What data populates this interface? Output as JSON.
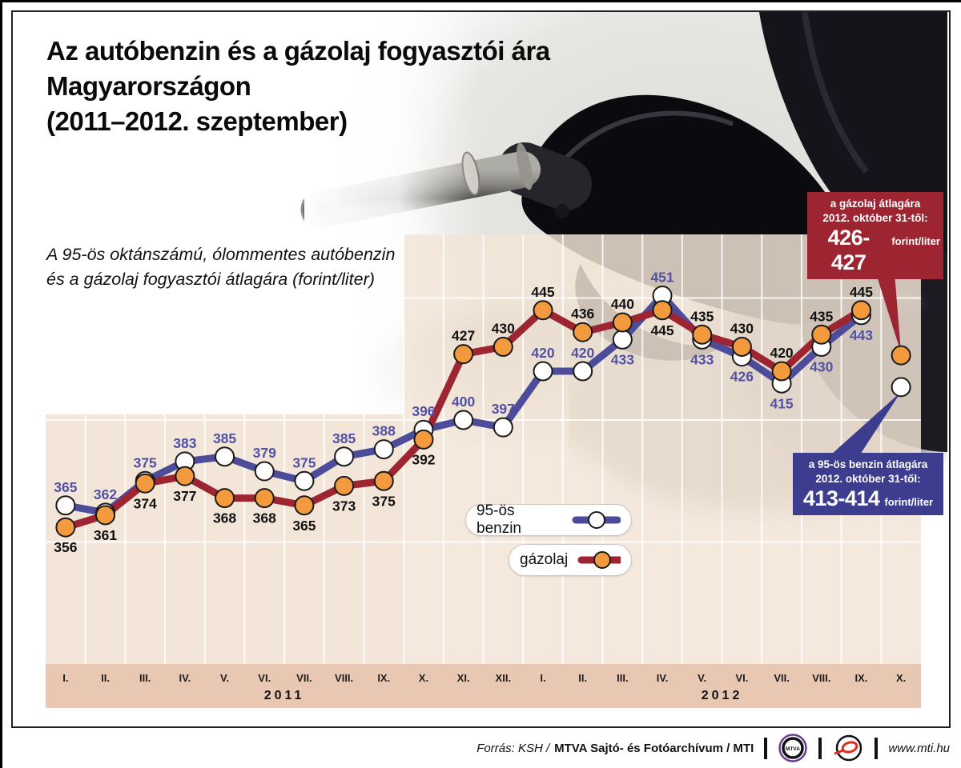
{
  "page": {
    "title_lines": [
      "Az autóbenzin és a gázolaj fogyasztói ára",
      "Magyarországon",
      "(2011–2012. szeptember)"
    ],
    "subtitle_lines": [
      "A 95-ös oktánszámú, ólommentes autóbenzin",
      "és a gázolaj fogyasztói átlagára (forint/liter)"
    ]
  },
  "chart_data": {
    "type": "line",
    "title": "A 95-ös oktánszámú, ólommentes autóbenzin és a gázolaj fogyasztói átlagára (forint/liter)",
    "unit": "forint/liter",
    "x_groups": [
      {
        "year": "2011",
        "months": [
          "I.",
          "II.",
          "III.",
          "IV.",
          "V.",
          "VI.",
          "VII.",
          "VIII.",
          "IX.",
          "X.",
          "XI.",
          "XII."
        ]
      },
      {
        "year": "2012",
        "months": [
          "I.",
          "II.",
          "III.",
          "IV.",
          "V.",
          "VI.",
          "VII.",
          "VIII.",
          "IX.",
          "X."
        ]
      }
    ],
    "ylim": [
      300,
      476
    ],
    "gridlines_y": [
      350,
      400,
      450
    ],
    "legend_position": "bottom-center",
    "series": [
      {
        "id": "benzin",
        "name": "95-ös benzin",
        "color": "#4c4c9b",
        "marker_fill": "#ffffff",
        "label_color": "#5151a3",
        "values": [
          365,
          362,
          375,
          383,
          385,
          379,
          375,
          385,
          388,
          396,
          400,
          397,
          420,
          420,
          433,
          451,
          433,
          426,
          415,
          430,
          443
        ],
        "october_point": 413.5
      },
      {
        "id": "gazolaj",
        "name": "gázolaj",
        "color": "#9d2531",
        "marker_fill": "#f39a3e",
        "label_color": "#111111",
        "values": [
          356,
          361,
          374,
          377,
          368,
          368,
          365,
          373,
          375,
          392,
          427,
          430,
          445,
          436,
          440,
          445,
          435,
          430,
          420,
          435,
          445
        ],
        "october_point": 426.5
      }
    ]
  },
  "callouts": {
    "gazolaj": {
      "line1": "a gázolaj átlagára",
      "line2": "2012. október 31-től:",
      "value": "426-427",
      "unit": "forint/liter",
      "bg": "#9d2531"
    },
    "benzin": {
      "line1": "a 95-ös benzin átlagára",
      "line2": "2012. október 31-től:",
      "value": "413-414",
      "unit": "forint/liter",
      "bg": "#3d3d90"
    }
  },
  "footer": {
    "source_italic": "Forrás: KSH /",
    "source_bold": "MTVA Sajtó- és Fotóarchívum / MTI",
    "website": "www.mti.hu",
    "mtva_logo": "MTVA"
  }
}
